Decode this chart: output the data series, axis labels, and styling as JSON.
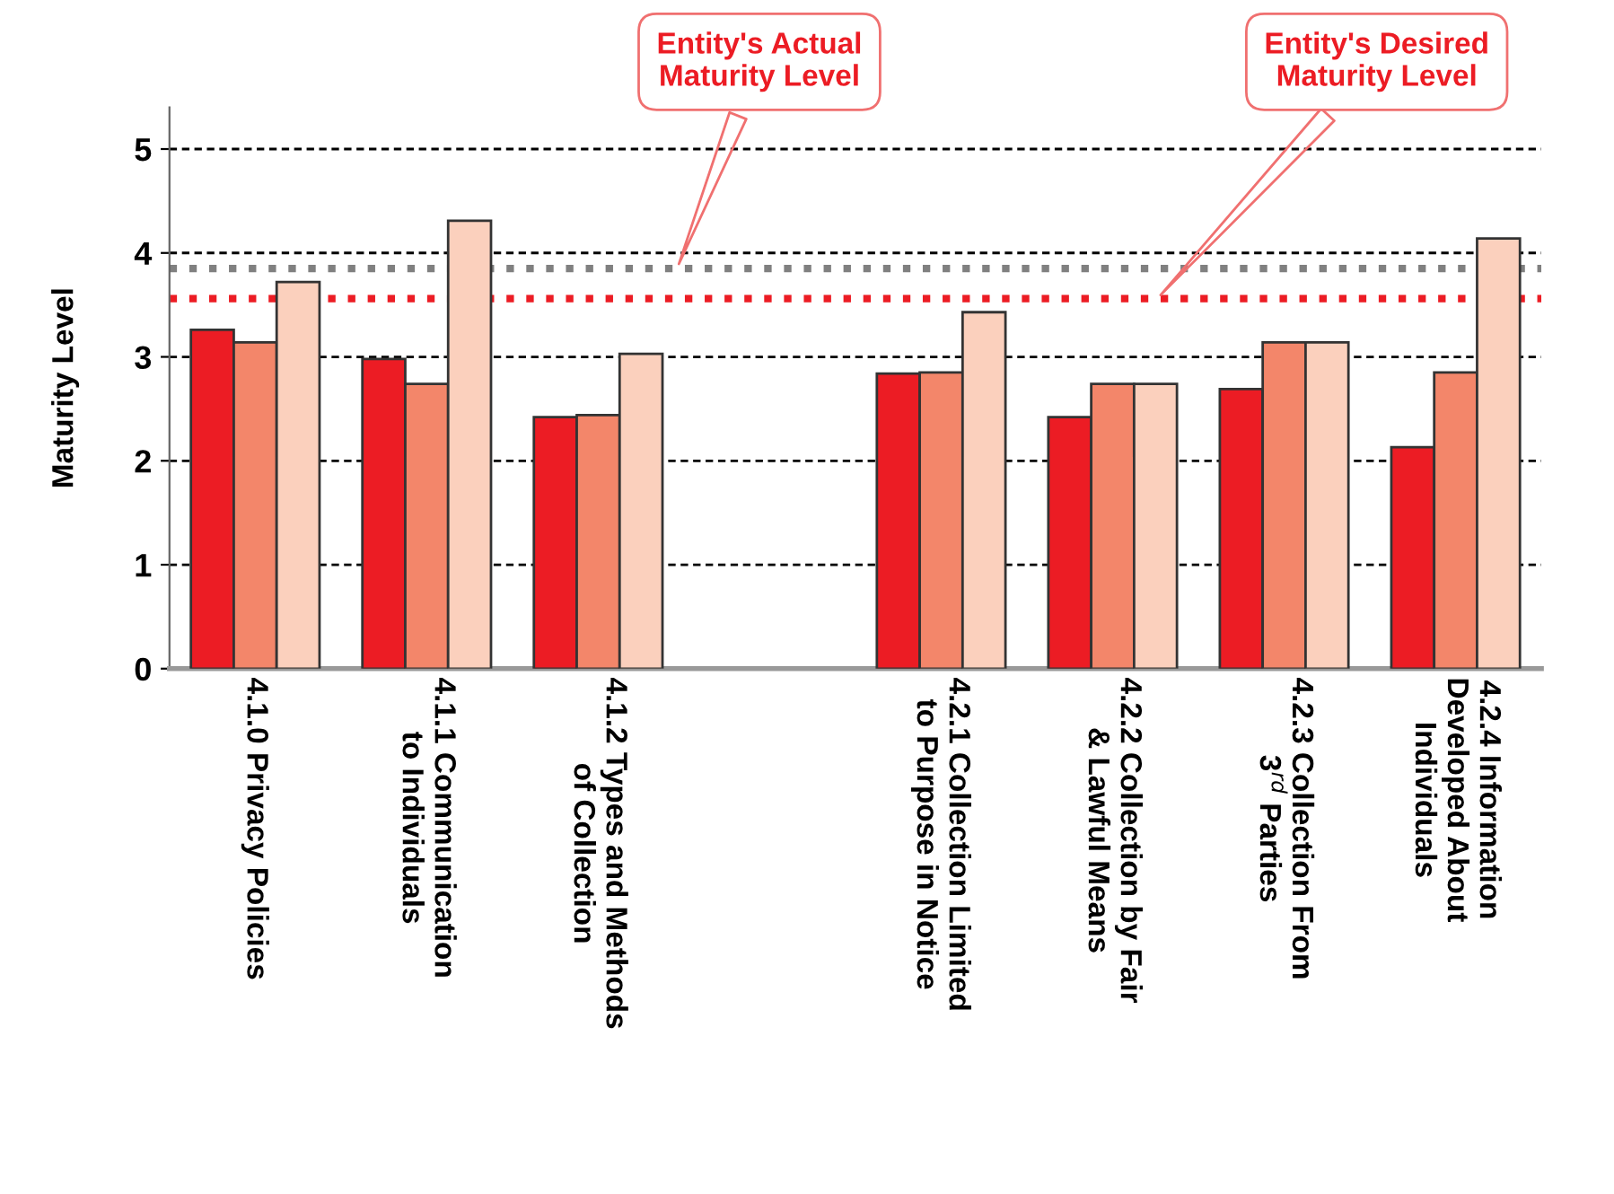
{
  "chart_data": {
    "type": "bar",
    "ylabel": "Maturity Level",
    "categories": [
      "4.1.0 Privacy Policies",
      "4.1.1 Communication\nto Individuals",
      "4.1.2 Types and Methods\nof Collection",
      null,
      "4.2.1 Collection Limited\nto Purpose in Notice",
      "4.2.2 Collection by Fair\n& Lawful Means",
      "4.2.3 Collection From\n3$^{rd}$ Parties",
      "4.2.4 Information\nDeveloped About\nIndividuals"
    ],
    "series": [
      {
        "color": "#ec1c24",
        "values": [
          3.26,
          2.98,
          2.42,
          null,
          2.84,
          2.42,
          2.69,
          2.13
        ]
      },
      {
        "color": "#f3866a",
        "values": [
          3.14,
          2.74,
          2.44,
          null,
          2.85,
          2.74,
          3.14,
          2.85
        ]
      },
      {
        "color": "#fbd0bd",
        "values": [
          3.72,
          4.31,
          3.03,
          null,
          3.43,
          2.74,
          3.14,
          4.14
        ]
      }
    ],
    "ylim": [
      0,
      5.4
    ],
    "yticks": [
      0,
      1,
      2,
      3,
      4,
      5
    ],
    "grid": "y",
    "ref_lines": [
      {
        "axis": "y",
        "value": 3.85,
        "color": "#808080",
        "line_style": "dotted"
      },
      {
        "axis": "y",
        "value": 3.56,
        "color": "#ec1c24",
        "line_style": "dotted"
      }
    ],
    "annotations": [
      "Entity's Actual\nMaturity Level",
      "Entity's Desired\nMaturity Level"
    ]
  }
}
